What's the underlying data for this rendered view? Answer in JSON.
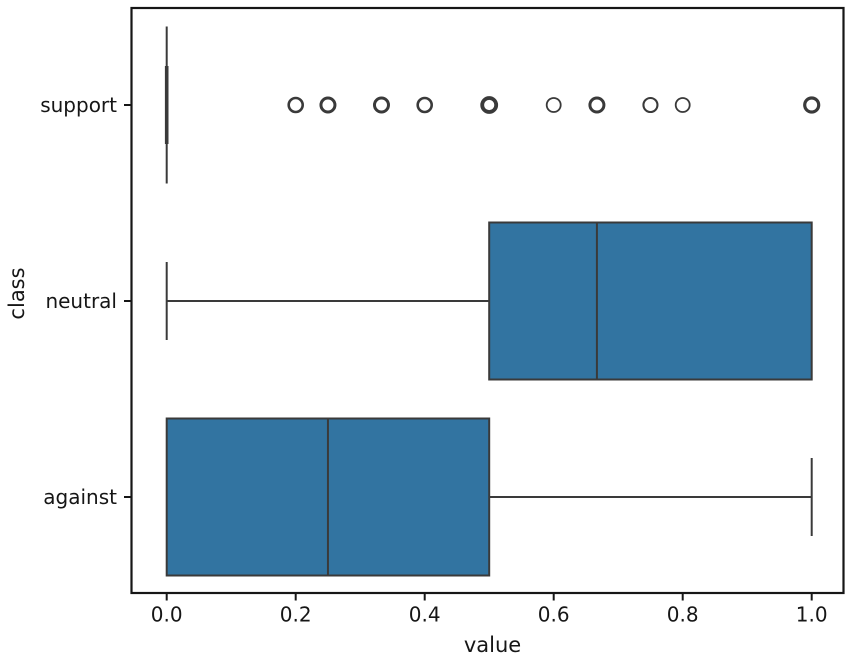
{
  "figure": {
    "background": "#ffffff",
    "frame_color": "#161616",
    "text_color": "#161616",
    "line_color": "#3a3a3a",
    "box_fill": "#3274a1"
  },
  "chart_data": {
    "type": "boxplot",
    "orientation": "horizontal",
    "title": "",
    "xlabel": "value",
    "ylabel": "class",
    "xlim": [
      -0.055,
      1.055
    ],
    "xticks": [
      0.0,
      0.2,
      0.4,
      0.6,
      0.8,
      1.0
    ],
    "xtick_labels": [
      "0.0",
      "0.2",
      "0.4",
      "0.6",
      "0.8",
      "1.0"
    ],
    "categories": [
      "support",
      "neutral",
      "against"
    ],
    "grid": false,
    "legend": null,
    "boxes": [
      {
        "class": "support",
        "whisker_low": 0.0,
        "q1": 0.0,
        "median": 0.0,
        "q3": 0.0,
        "whisker_high": 0.0,
        "outliers": [
          0.2,
          0.25,
          0.333,
          0.4,
          0.5,
          0.6,
          0.667,
          0.75,
          0.8,
          1.0
        ],
        "outlier_weights": [
          2.6,
          3.0,
          3.0,
          2.6,
          3.8,
          1.8,
          3.0,
          2.1,
          1.8,
          3.2
        ]
      },
      {
        "class": "neutral",
        "whisker_low": 0.0,
        "q1": 0.5,
        "median": 0.667,
        "q3": 1.0,
        "whisker_high": 1.0,
        "outliers": [],
        "outlier_weights": []
      },
      {
        "class": "against",
        "whisker_low": 0.0,
        "q1": 0.0,
        "median": 0.25,
        "q3": 0.5,
        "whisker_high": 1.0,
        "outliers": [],
        "outlier_weights": []
      }
    ]
  }
}
